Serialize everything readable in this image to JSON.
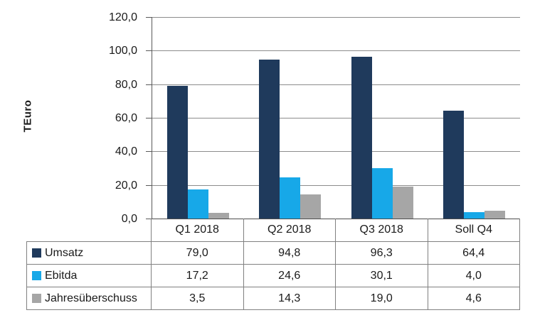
{
  "chart_data": {
    "type": "bar",
    "title": "",
    "ylabel": "TEuro",
    "xlabel": "",
    "categories": [
      "Q1 2018",
      "Q2 2018",
      "Q3 2018",
      "Soll Q4"
    ],
    "series": [
      {
        "name": "Umsatz",
        "color": "#1f3a5c",
        "values": [
          79.0,
          94.8,
          96.3,
          64.4
        ]
      },
      {
        "name": "Ebitda",
        "color": "#17a8e8",
        "values": [
          17.2,
          24.6,
          30.1,
          4.0
        ]
      },
      {
        "name": "Jahresüberschuss",
        "color": "#a6a6a6",
        "values": [
          3.5,
          14.3,
          19.0,
          4.6
        ]
      }
    ],
    "ylim": [
      0,
      120
    ],
    "ytick_step": 20,
    "ytick_labels": [
      "120,0",
      "100,0",
      "80,0",
      "60,0",
      "40,0",
      "20,0",
      "0,0"
    ],
    "grid": true,
    "legend_position": "data-table-left",
    "number_format": "decimal-comma",
    "colors": {
      "gridline": "#8c8c8c",
      "axis": "#595959",
      "table_border": "#808080",
      "text": "#1a1a1a"
    }
  }
}
